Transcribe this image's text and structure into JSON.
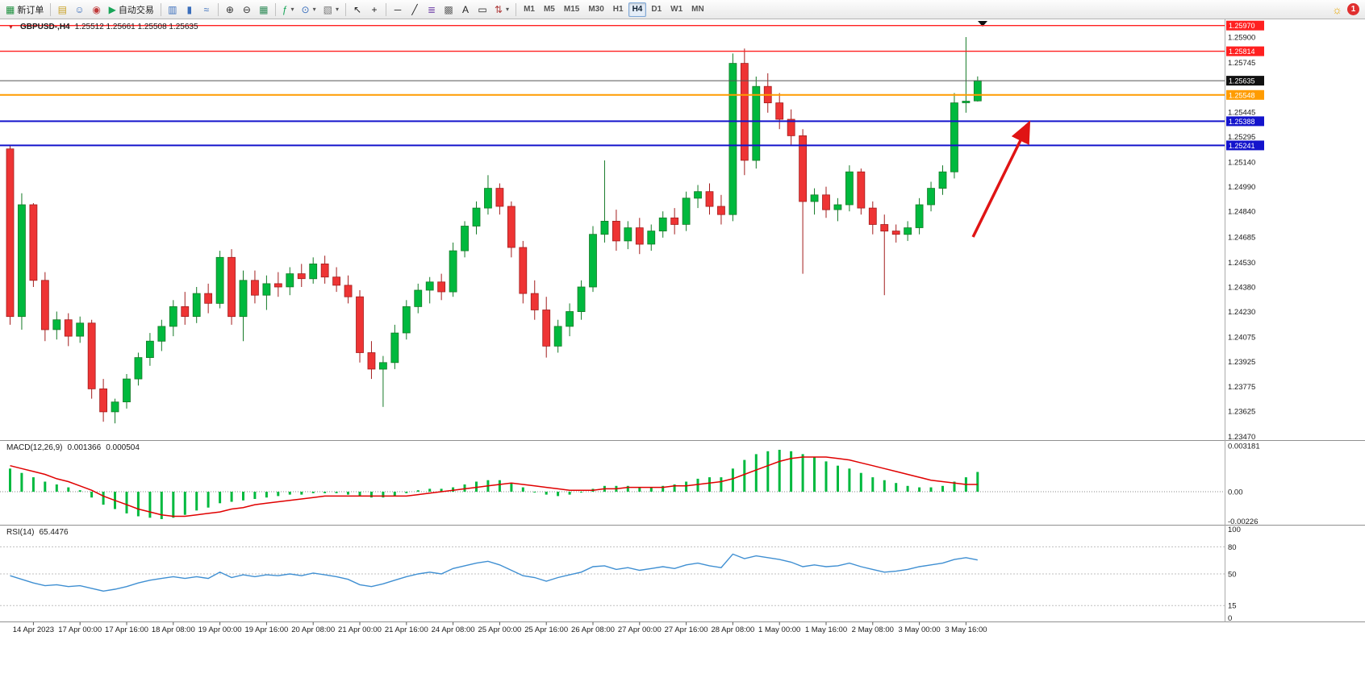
{
  "toolbar": {
    "buttons": [
      {
        "name": "new-order-button",
        "glyph": "▦",
        "glyph_color": "#1a8f3c",
        "label": "新订单"
      },
      {
        "name": "toolbar-separator",
        "sep": true
      },
      {
        "name": "market-watch-icon",
        "glyph": "▤",
        "glyph_color": "#c9a227"
      },
      {
        "name": "navigator-icon",
        "glyph": "☺",
        "glyph_color": "#3a6ebc"
      },
      {
        "name": "terminal-icon",
        "glyph": "◉",
        "glyph_color": "#c03a3a"
      },
      {
        "name": "auto-trading-button",
        "glyph": "▶",
        "glyph_color": "#18a558",
        "label": "自动交易"
      },
      {
        "name": "toolbar-separator",
        "sep": true
      },
      {
        "name": "bar-chart-icon",
        "glyph": "▥",
        "glyph_color": "#3a6ebc"
      },
      {
        "name": "candlestick-chart-icon",
        "glyph": "▮",
        "glyph_color": "#3a6ebc"
      },
      {
        "name": "line-chart-icon",
        "glyph": "≈",
        "glyph_color": "#3a6ebc"
      },
      {
        "name": "toolbar-separator",
        "sep": true
      },
      {
        "name": "zoom-in-icon",
        "glyph": "⊕",
        "glyph_color": "#333333"
      },
      {
        "name": "zoom-out-icon",
        "glyph": "⊖",
        "glyph_color": "#333333"
      },
      {
        "name": "tile-windows-icon",
        "glyph": "▦",
        "glyph_color": "#2e8b57"
      },
      {
        "name": "toolbar-separator",
        "sep": true
      },
      {
        "name": "indicators-icon",
        "glyph": "ƒ",
        "glyph_color": "#18a558",
        "dropdown": true
      },
      {
        "name": "periods-icon",
        "glyph": "⊙",
        "glyph_color": "#3a6ebc",
        "dropdown": true
      },
      {
        "name": "templates-icon",
        "glyph": "▧",
        "glyph_color": "#777777",
        "dropdown": true
      },
      {
        "name": "toolbar-separator",
        "sep": true
      },
      {
        "name": "cursor-icon",
        "glyph": "↖",
        "glyph_color": "#222222"
      },
      {
        "name": "crosshair-icon",
        "glyph": "+",
        "glyph_color": "#222222"
      },
      {
        "name": "toolbar-separator",
        "sep": true
      },
      {
        "name": "horizontal-line-icon",
        "glyph": "─",
        "glyph_color": "#222222"
      },
      {
        "name": "trendline-icon",
        "glyph": "╱",
        "glyph_color": "#222222"
      },
      {
        "name": "fibonacci-icon",
        "glyph": "≣",
        "glyph_color": "#7a4fae"
      },
      {
        "name": "grid-icon",
        "glyph": "▩",
        "glyph_color": "#666666"
      },
      {
        "name": "text-icon",
        "glyph": "A",
        "glyph_color": "#222222"
      },
      {
        "name": "label-icon",
        "glyph": "▭",
        "glyph_color": "#222222"
      },
      {
        "name": "arrows-tool-icon",
        "glyph": "⇅",
        "glyph_color": "#b04040",
        "dropdown": true
      },
      {
        "name": "toolbar-separator",
        "sep": true
      }
    ],
    "timeframes": [
      "M1",
      "M5",
      "M15",
      "M30",
      "H1",
      "H4",
      "D1",
      "W1",
      "MN"
    ],
    "active_timeframe": "H4",
    "brightness_glyph": "☼",
    "notification_count": "1"
  },
  "icons": {
    "symbol_marker": "▼",
    "dropdown_arrow": "▾",
    "chart_shift_marker": "▼"
  },
  "chart": {
    "symbol": "GBPUSD-,H4",
    "ohlc": "1.25512 1.25661 1.25508 1.25635"
  },
  "macd": {
    "title": "MACD(12,26,9)",
    "value": "0.001366",
    "signal": "0.000504"
  },
  "rsi": {
    "title": "RSI(14)",
    "value": "65.4476"
  },
  "colors": {
    "candle_up": "#00b93e",
    "candle_down": "#ee3434",
    "wick_up": "#157a27",
    "wick_down": "#a31d1d",
    "macd_histogram": "#00b93e",
    "macd_signal": "#e00000",
    "rsi_line": "#3f8fd2",
    "hline_red": "#ff2020",
    "hline_orange": "#ff9c00",
    "hline_blue": "#1414cc",
    "current_price_line": "#555555",
    "current_price_tag": "#111111",
    "arrow": "#e01414",
    "axis_text": "#1a1a1a"
  },
  "chart_data": [
    {
      "type": "candlestick",
      "title": "GBPUSD- H4",
      "ylim": [
        1.23448,
        1.26008
      ],
      "y_ticks": [
        1.259,
        1.25745,
        1.25445,
        1.25295,
        1.2514,
        1.2499,
        1.2484,
        1.24685,
        1.2453,
        1.2438,
        1.2423,
        1.24075,
        1.23925,
        1.23775,
        1.23625,
        1.2347
      ],
      "x_labels": [
        "14 Apr 2023",
        "17 Apr 00:00",
        "17 Apr 16:00",
        "18 Apr 08:00",
        "19 Apr 00:00",
        "19 Apr 16:00",
        "20 Apr 08:00",
        "21 Apr 00:00",
        "21 Apr 16:00",
        "24 Apr 08:00",
        "25 Apr 00:00",
        "25 Apr 16:00",
        "26 Apr 08:00",
        "27 Apr 00:00",
        "27 Apr 16:00",
        "28 Apr 08:00",
        "1 May 00:00",
        "1 May 16:00",
        "2 May 08:00",
        "3 May 00:00",
        "3 May 16:00"
      ],
      "x_label_first_index": 2,
      "x_label_step": 4,
      "current_price": 1.25635,
      "current_price_label": "1.25635",
      "hlines": [
        {
          "price": 1.2597,
          "label": "1.25970",
          "color_key": "hline_red"
        },
        {
          "price": 1.25814,
          "label": "1.25814",
          "color_key": "hline_red"
        },
        {
          "price": 1.25548,
          "label": "1.25548",
          "color_key": "hline_orange"
        },
        {
          "price": 1.25388,
          "label": "1.25388",
          "color_key": "hline_blue"
        },
        {
          "price": 1.25241,
          "label": "1.25241",
          "color_key": "hline_blue"
        }
      ],
      "arrow_annotation": {
        "from_bar": 82.6,
        "from_price": 1.24684,
        "to_bar": 87.3,
        "to_price": 1.25362
      },
      "candles": [
        [
          1.2522,
          1.2524,
          1.2415,
          1.242
        ],
        [
          1.242,
          1.2495,
          1.2412,
          1.2488
        ],
        [
          1.2488,
          1.2489,
          1.2438,
          1.2442
        ],
        [
          1.2442,
          1.2447,
          1.2405,
          1.2412
        ],
        [
          1.2412,
          1.2423,
          1.2406,
          1.2418
        ],
        [
          1.2418,
          1.2422,
          1.2402,
          1.2408
        ],
        [
          1.2408,
          1.242,
          1.2404,
          1.2416
        ],
        [
          1.2416,
          1.2418,
          1.237,
          1.2376
        ],
        [
          1.2376,
          1.2382,
          1.2356,
          1.2362
        ],
        [
          1.2362,
          1.237,
          1.2355,
          1.2368
        ],
        [
          1.2368,
          1.2385,
          1.2364,
          1.2382
        ],
        [
          1.2382,
          1.2398,
          1.2378,
          1.2395
        ],
        [
          1.2395,
          1.241,
          1.239,
          1.2405
        ],
        [
          1.2405,
          1.2418,
          1.2399,
          1.2414
        ],
        [
          1.2414,
          1.243,
          1.2408,
          1.2426
        ],
        [
          1.2426,
          1.2435,
          1.2415,
          1.242
        ],
        [
          1.242,
          1.2438,
          1.2416,
          1.2434
        ],
        [
          1.2434,
          1.244,
          1.2422,
          1.2428
        ],
        [
          1.2428,
          1.246,
          1.2425,
          1.2456
        ],
        [
          1.2456,
          1.2461,
          1.2415,
          1.242
        ],
        [
          1.242,
          1.2448,
          1.2405,
          1.2442
        ],
        [
          1.2442,
          1.2448,
          1.2428,
          1.2433
        ],
        [
          1.2433,
          1.2445,
          1.2424,
          1.244
        ],
        [
          1.244,
          1.2447,
          1.2432,
          1.2438
        ],
        [
          1.2438,
          1.245,
          1.2433,
          1.2446
        ],
        [
          1.2446,
          1.2452,
          1.2438,
          1.2443
        ],
        [
          1.2443,
          1.2456,
          1.244,
          1.2452
        ],
        [
          1.2452,
          1.2457,
          1.244,
          1.2444
        ],
        [
          1.2444,
          1.245,
          1.2435,
          1.2439
        ],
        [
          1.2439,
          1.2445,
          1.2428,
          1.2432
        ],
        [
          1.2432,
          1.2436,
          1.2392,
          1.2398
        ],
        [
          1.2398,
          1.2405,
          1.2382,
          1.2388
        ],
        [
          1.2388,
          1.2396,
          1.2365,
          1.2392
        ],
        [
          1.2392,
          1.2415,
          1.2388,
          1.241
        ],
        [
          1.241,
          1.243,
          1.2406,
          1.2426
        ],
        [
          1.2426,
          1.244,
          1.2422,
          1.2436
        ],
        [
          1.2436,
          1.2444,
          1.2428,
          1.2441
        ],
        [
          1.2441,
          1.2446,
          1.243,
          1.2435
        ],
        [
          1.2435,
          1.2465,
          1.2432,
          1.246
        ],
        [
          1.246,
          1.2478,
          1.2456,
          1.2475
        ],
        [
          1.2475,
          1.249,
          1.247,
          1.2486
        ],
        [
          1.2486,
          1.2506,
          1.2482,
          1.2498
        ],
        [
          1.2498,
          1.2501,
          1.2482,
          1.2487
        ],
        [
          1.2487,
          1.249,
          1.2456,
          1.2462
        ],
        [
          1.2462,
          1.2466,
          1.2428,
          1.2434
        ],
        [
          1.2434,
          1.2442,
          1.2418,
          1.2424
        ],
        [
          1.2424,
          1.2432,
          1.2395,
          1.2402
        ],
        [
          1.2402,
          1.2418,
          1.2398,
          1.2414
        ],
        [
          1.2414,
          1.2428,
          1.2408,
          1.2423
        ],
        [
          1.2423,
          1.2442,
          1.2418,
          1.2438
        ],
        [
          1.2438,
          1.2475,
          1.2435,
          1.247
        ],
        [
          1.247,
          1.2515,
          1.2465,
          1.2478
        ],
        [
          1.2478,
          1.2485,
          1.246,
          1.2466
        ],
        [
          1.2466,
          1.2478,
          1.2461,
          1.2474
        ],
        [
          1.2474,
          1.248,
          1.2458,
          1.2464
        ],
        [
          1.2464,
          1.2476,
          1.246,
          1.2472
        ],
        [
          1.2472,
          1.2484,
          1.2468,
          1.248
        ],
        [
          1.248,
          1.2486,
          1.247,
          1.2476
        ],
        [
          1.2476,
          1.2496,
          1.2472,
          1.2492
        ],
        [
          1.2492,
          1.25,
          1.2486,
          1.2496
        ],
        [
          1.2496,
          1.2501,
          1.2482,
          1.2487
        ],
        [
          1.2487,
          1.2494,
          1.2476,
          1.2482
        ],
        [
          1.2482,
          1.258,
          1.2478,
          1.2574
        ],
        [
          1.2574,
          1.2583,
          1.2506,
          1.2515
        ],
        [
          1.2515,
          1.2566,
          1.251,
          1.256
        ],
        [
          1.256,
          1.2568,
          1.2544,
          1.255
        ],
        [
          1.255,
          1.2556,
          1.2534,
          1.254
        ],
        [
          1.254,
          1.2546,
          1.2524,
          1.253
        ],
        [
          1.253,
          1.2534,
          1.2446,
          1.249
        ],
        [
          1.249,
          1.2498,
          1.2482,
          1.2494
        ],
        [
          1.2494,
          1.2499,
          1.248,
          1.2485
        ],
        [
          1.2485,
          1.2492,
          1.2478,
          1.2488
        ],
        [
          1.2488,
          1.2512,
          1.2484,
          1.2508
        ],
        [
          1.2508,
          1.251,
          1.2482,
          1.2486
        ],
        [
          1.2486,
          1.249,
          1.247,
          1.2476
        ],
        [
          1.2476,
          1.2482,
          1.2433,
          1.2472
        ],
        [
          1.2472,
          1.2476,
          1.2465,
          1.247
        ],
        [
          1.247,
          1.2478,
          1.2466,
          1.2474
        ],
        [
          1.2474,
          1.2492,
          1.247,
          1.2488
        ],
        [
          1.2488,
          1.2502,
          1.2484,
          1.2498
        ],
        [
          1.2498,
          1.2512,
          1.2494,
          1.2508
        ],
        [
          1.2508,
          1.2556,
          1.2504,
          1.255
        ],
        [
          1.255,
          1.259,
          1.2544,
          1.2551
        ],
        [
          1.25512,
          1.25661,
          1.25508,
          1.25635
        ]
      ]
    },
    {
      "type": "bar",
      "name": "MACD(12,26,9)",
      "y_ticks": [
        0.003181,
        0,
        -0.00226
      ],
      "y_tick_labels": [
        "0.003181",
        "0.00",
        "-0.00226"
      ],
      "current_values": [
        0.001366,
        0.000504
      ],
      "series": [
        {
          "name": "MACD histogram",
          "values": [
            0.0016,
            0.0013,
            0.001,
            0.0007,
            0.0005,
            0.0003,
            0.0001,
            -0.0004,
            -0.0009,
            -0.0012,
            -0.0015,
            -0.0017,
            -0.0018,
            -0.0019,
            -0.0018,
            -0.0016,
            -0.0013,
            -0.0011,
            -0.0008,
            -0.0007,
            -0.0006,
            -0.0005,
            -0.0004,
            -0.0003,
            -0.0002,
            -0.0002,
            -0.0001,
            -0.0001,
            -0.0001,
            -0.0002,
            -0.0003,
            -0.0004,
            -0.0004,
            -0.0003,
            -0.0001,
            0.0001,
            0.0002,
            0.0002,
            0.0003,
            0.0005,
            0.0007,
            0.0008,
            0.0008,
            0.0006,
            0.0003,
            0.0,
            -0.0002,
            -0.0003,
            -0.0002,
            0.0,
            0.0002,
            0.0004,
            0.0004,
            0.0004,
            0.0003,
            0.0003,
            0.0004,
            0.0005,
            0.0007,
            0.0009,
            0.001,
            0.001,
            0.0016,
            0.0022,
            0.0026,
            0.0028,
            0.0029,
            0.0028,
            0.0026,
            0.0024,
            0.0021,
            0.0018,
            0.0016,
            0.0013,
            0.001,
            0.0008,
            0.0006,
            0.0004,
            0.0003,
            0.0003,
            0.0004,
            0.0007,
            0.001,
            0.001366
          ]
        },
        {
          "name": "Signal",
          "values": [
            0.0018,
            0.0016,
            0.0014,
            0.0012,
            0.0009,
            0.0007,
            0.0004,
            0.0001,
            -0.0003,
            -0.0006,
            -0.0009,
            -0.0012,
            -0.0014,
            -0.0016,
            -0.0017,
            -0.0017,
            -0.0016,
            -0.0015,
            -0.0014,
            -0.0012,
            -0.0011,
            -0.0009,
            -0.0008,
            -0.0007,
            -0.0006,
            -0.0005,
            -0.0004,
            -0.0003,
            -0.0003,
            -0.0003,
            -0.0003,
            -0.0003,
            -0.0003,
            -0.0003,
            -0.0003,
            -0.0002,
            -0.0001,
            0.0,
            0.0001,
            0.0002,
            0.0003,
            0.0004,
            0.0005,
            0.0006,
            0.0005,
            0.0004,
            0.0003,
            0.0002,
            0.0001,
            0.0001,
            0.0001,
            0.0002,
            0.0002,
            0.0003,
            0.0003,
            0.0003,
            0.0003,
            0.0004,
            0.0004,
            0.0005,
            0.0006,
            0.0007,
            0.0009,
            0.0012,
            0.0015,
            0.0018,
            0.0021,
            0.0023,
            0.0024,
            0.0024,
            0.0024,
            0.0023,
            0.0022,
            0.002,
            0.0018,
            0.0016,
            0.0014,
            0.0012,
            0.001,
            0.0008,
            0.0007,
            0.0006,
            0.0005,
            0.000504
          ]
        }
      ]
    },
    {
      "type": "line",
      "name": "RSI(14)",
      "ylim": [
        0,
        100
      ],
      "levels": [
        80,
        50,
        15
      ],
      "y_ticks": [
        100,
        80,
        50,
        15,
        0
      ],
      "current_value": 65.4476,
      "values": [
        48,
        44,
        40,
        37,
        38,
        36,
        37,
        34,
        31,
        33,
        36,
        40,
        43,
        45,
        47,
        45,
        47,
        45,
        52,
        46,
        49,
        47,
        49,
        48,
        50,
        48,
        51,
        49,
        47,
        44,
        38,
        36,
        39,
        43,
        47,
        50,
        52,
        50,
        56,
        59,
        62,
        64,
        60,
        54,
        48,
        46,
        42,
        46,
        49,
        52,
        58,
        59,
        55,
        57,
        54,
        56,
        58,
        56,
        60,
        62,
        59,
        57,
        72,
        67,
        70,
        68,
        66,
        63,
        58,
        60,
        58,
        59,
        62,
        58,
        55,
        52,
        53,
        55,
        58,
        60,
        62,
        66,
        68,
        65.45
      ]
    }
  ]
}
